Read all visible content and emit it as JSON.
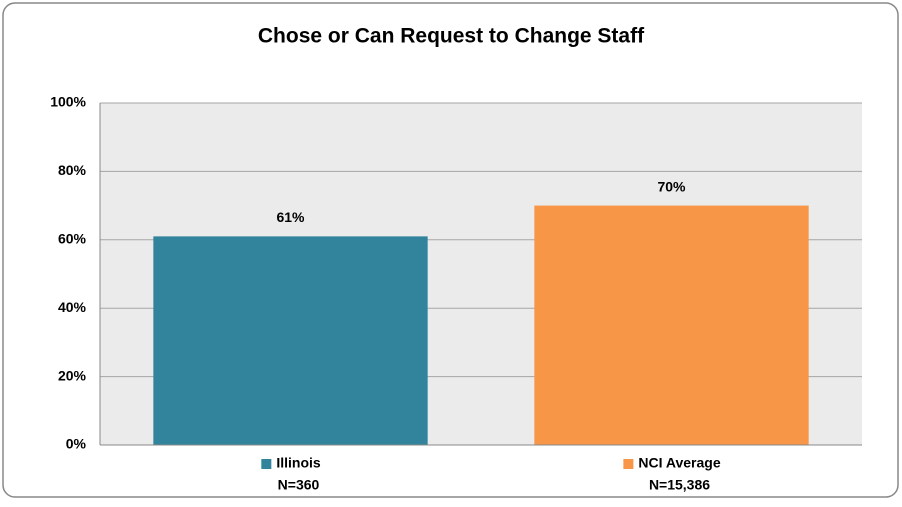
{
  "chart_data": {
    "type": "bar",
    "title": "Chose or Can Request to Change Staff",
    "categories": [
      "Illinois",
      "NCI Average"
    ],
    "sample_sizes": [
      "N=360",
      "N=15,386"
    ],
    "values": [
      61,
      70
    ],
    "value_labels": [
      "61%",
      "70%"
    ],
    "colors": [
      "#31849b",
      "#f79646"
    ],
    "ylim": [
      0,
      100
    ],
    "yticks": [
      {
        "value": 0,
        "label": "0%"
      },
      {
        "value": 20,
        "label": "20%"
      },
      {
        "value": 40,
        "label": "40%"
      },
      {
        "value": 60,
        "label": "60%"
      },
      {
        "value": 80,
        "label": "80%"
      },
      {
        "value": 100,
        "label": "100%"
      }
    ],
    "grid": true
  }
}
